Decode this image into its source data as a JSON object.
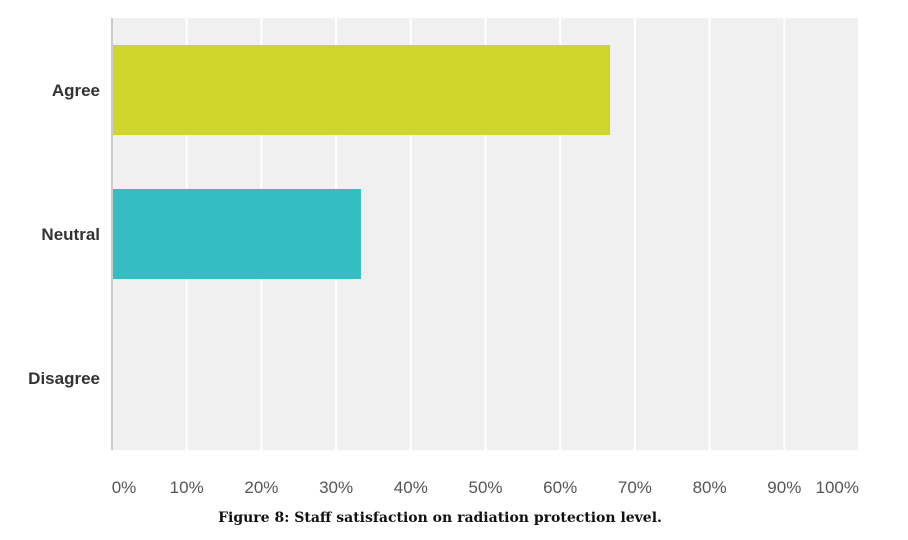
{
  "caption": "Figure 8: Staff satisfaction on radiation protection level.",
  "chart_data": {
    "type": "bar",
    "orientation": "horizontal",
    "categories": [
      "Agree",
      "Neutral",
      "Disagree"
    ],
    "values": [
      66.67,
      33.33,
      0
    ],
    "unit": "%",
    "xlim": [
      0,
      100
    ],
    "xticks": [
      "0%",
      "10%",
      "20%",
      "30%",
      "40%",
      "50%",
      "60%",
      "70%",
      "80%",
      "90%",
      "100%"
    ],
    "grid": "vertical",
    "colors": {
      "Agree": "#cfd52a",
      "Neutral": "#35bec1",
      "Disagree": "#cccccc",
      "plot_background": "#f0f0f0",
      "gridline": "#ffffff",
      "axis": "#cccccc"
    }
  }
}
